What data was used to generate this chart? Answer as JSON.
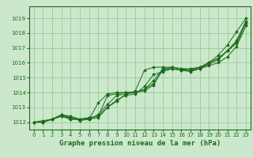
{
  "bg_color": "#cce8cc",
  "grid_color": "#99cc99",
  "line_color": "#1a6b1a",
  "xlabel": "Graphe pression niveau de la mer (hPa)",
  "xlim": [
    -0.5,
    23.5
  ],
  "ylim": [
    1011.5,
    1019.8
  ],
  "yticks": [
    1012,
    1013,
    1014,
    1015,
    1016,
    1017,
    1018,
    1019
  ],
  "xticks": [
    0,
    1,
    2,
    3,
    4,
    5,
    6,
    7,
    8,
    9,
    10,
    11,
    12,
    13,
    14,
    15,
    16,
    17,
    18,
    19,
    20,
    21,
    22,
    23
  ],
  "series": [
    [
      1012.0,
      1012.0,
      1012.2,
      1012.5,
      1012.3,
      1012.2,
      1012.2,
      1012.5,
      1013.2,
      1013.8,
      1013.9,
      1014.1,
      1015.5,
      1015.7,
      1015.7,
      1015.7,
      1015.6,
      1015.5,
      1015.7,
      1016.0,
      1016.5,
      1017.2,
      1018.1,
      1019.0
    ],
    [
      1012.0,
      1012.0,
      1012.2,
      1012.4,
      1012.3,
      1012.1,
      1012.2,
      1012.3,
      1013.0,
      1013.5,
      1013.8,
      1013.9,
      1014.4,
      1015.2,
      1015.4,
      1015.6,
      1015.5,
      1015.4,
      1015.6,
      1015.9,
      1016.2,
      1016.8,
      1017.5,
      1018.8
    ],
    [
      1012.0,
      1012.0,
      1012.2,
      1012.4,
      1012.2,
      1012.2,
      1012.2,
      1013.3,
      1013.9,
      1014.0,
      1014.0,
      1014.0,
      1014.2,
      1014.6,
      1015.5,
      1015.6,
      1015.5,
      1015.5,
      1015.6,
      1015.8,
      1016.0,
      1016.4,
      1017.1,
      1018.5
    ],
    [
      1012.0,
      1012.0,
      1012.2,
      1012.4,
      1012.2,
      1012.2,
      1012.3,
      1012.4,
      1013.8,
      1013.9,
      1014.0,
      1014.0,
      1014.1,
      1014.5,
      1015.6,
      1015.7,
      1015.6,
      1015.6,
      1015.7,
      1016.0,
      1016.3,
      1016.8,
      1017.4,
      1018.7
    ],
    [
      1012.0,
      1012.1,
      1012.2,
      1012.5,
      1012.4,
      1012.2,
      1012.3,
      1012.4,
      1013.0,
      1013.4,
      1013.9,
      1014.0,
      1014.2,
      1014.8,
      1015.6,
      1015.6,
      1015.5,
      1015.5,
      1015.6,
      1016.0,
      1016.3,
      1016.8,
      1017.3,
      1018.5
    ]
  ],
  "figsize": [
    3.2,
    2.0
  ],
  "dpi": 100
}
